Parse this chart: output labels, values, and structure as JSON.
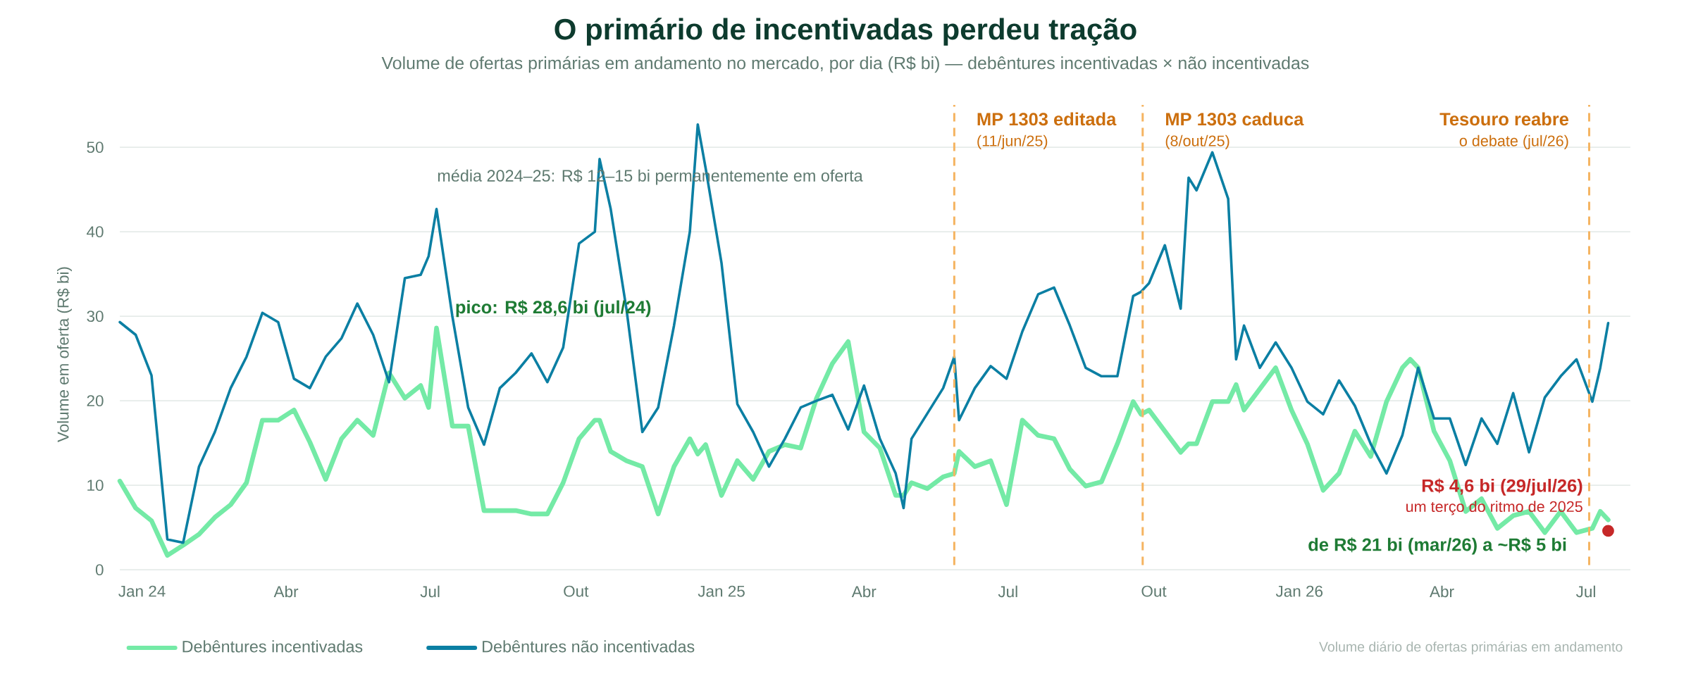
{
  "chart_data": {
    "type": "line",
    "title": "O primário de incentivadas perdeu tração",
    "subtitle": "Volume de ofertas primárias em andamento no mercado, por dia (R$ bi) — debêntures incentivadas × não incentivadas",
    "ylabel": "Volume em oferta (R$ bi)",
    "x": [
      "2024-01-01",
      "2024-01-11",
      "2024-01-21",
      "2024-01-31",
      "2024-02-10",
      "2024-02-20",
      "2024-03-01",
      "2024-03-11",
      "2024-03-21",
      "2024-03-31",
      "2024-04-10",
      "2024-04-20",
      "2024-04-30",
      "2024-05-10",
      "2024-05-20",
      "2024-05-30",
      "2024-06-09",
      "2024-06-19",
      "2024-06-29",
      "2024-07-09",
      "2024-07-14",
      "2024-07-19",
      "2024-07-29",
      "2024-08-08",
      "2024-08-18",
      "2024-08-28",
      "2024-09-07",
      "2024-09-17",
      "2024-09-27",
      "2024-10-07",
      "2024-10-17",
      "2024-10-27",
      "2024-10-30",
      "2024-11-06",
      "2024-11-16",
      "2024-11-26",
      "2024-12-06",
      "2024-12-16",
      "2024-12-26",
      "2024-12-31",
      "2025-01-05",
      "2025-01-15",
      "2025-01-25",
      "2025-02-04",
      "2025-02-14",
      "2025-02-24",
      "2025-03-06",
      "2025-03-16",
      "2025-03-26",
      "2025-04-05",
      "2025-04-15",
      "2025-04-25",
      "2025-05-05",
      "2025-05-10",
      "2025-05-15",
      "2025-05-25",
      "2025-06-04",
      "2025-06-11",
      "2025-06-14",
      "2025-06-24",
      "2025-07-04",
      "2025-07-14",
      "2025-07-24",
      "2025-08-03",
      "2025-08-13",
      "2025-08-23",
      "2025-09-02",
      "2025-09-12",
      "2025-09-22",
      "2025-10-02",
      "2025-10-07",
      "2025-10-12",
      "2025-10-22",
      "2025-11-01",
      "2025-11-06",
      "2025-11-11",
      "2025-11-21",
      "2025-12-01",
      "2025-12-06",
      "2025-12-11",
      "2025-12-21",
      "2025-12-31",
      "2026-01-10",
      "2026-01-20",
      "2026-01-30",
      "2026-02-09",
      "2026-02-19",
      "2026-03-01",
      "2026-03-11",
      "2026-03-21",
      "2026-03-26",
      "2026-03-31",
      "2026-04-10",
      "2026-04-20",
      "2026-04-30",
      "2026-05-10",
      "2026-05-20",
      "2026-05-30",
      "2026-06-09",
      "2026-06-19",
      "2026-06-29",
      "2026-07-09",
      "2026-07-19",
      "2026-07-24",
      "2026-07-29"
    ],
    "series": [
      {
        "name": "Debêntures incentivadas",
        "color": "#74eaa6",
        "values": [
          10.5,
          7.3,
          5.8,
          1.7,
          2.9,
          4.2,
          6.2,
          7.7,
          10.3,
          17.7,
          17.7,
          18.9,
          15.1,
          10.7,
          15.5,
          17.7,
          15.9,
          23.3,
          20.3,
          21.8,
          19.2,
          28.6,
          17.0,
          17.0,
          7.0,
          7.0,
          7.0,
          6.6,
          6.6,
          10.3,
          15.5,
          17.7,
          17.7,
          14.0,
          12.9,
          12.2,
          6.6,
          12.2,
          15.5,
          13.7,
          14.8,
          8.8,
          12.9,
          10.7,
          14.0,
          14.8,
          14.4,
          20.3,
          24.4,
          27.0,
          16.3,
          14.4,
          8.8,
          8.8,
          10.3,
          9.6,
          11.0,
          11.4,
          14.0,
          12.2,
          12.9,
          7.7,
          17.7,
          15.9,
          15.5,
          11.9,
          9.9,
          10.4,
          14.9,
          19.9,
          18.4,
          18.9,
          16.4,
          13.9,
          14.9,
          14.9,
          19.9,
          19.9,
          21.9,
          18.9,
          21.4,
          23.9,
          18.9,
          14.9,
          9.4,
          11.4,
          16.4,
          13.4,
          19.9,
          23.9,
          24.9,
          23.9,
          16.4,
          12.9,
          6.9,
          8.4,
          4.9,
          6.4,
          6.9,
          4.4,
          6.9,
          4.4,
          4.9,
          6.9,
          5.9
        ]
      },
      {
        "name": "Debêntures não incentivadas",
        "color": "#0b7fa3",
        "values": [
          29.3,
          27.8,
          23.0,
          3.6,
          3.2,
          12.2,
          16.3,
          21.5,
          25.2,
          30.4,
          29.3,
          22.6,
          21.5,
          25.2,
          27.4,
          31.5,
          27.8,
          22.2,
          34.5,
          34.9,
          37.1,
          42.7,
          30.0,
          19.2,
          14.8,
          21.5,
          23.3,
          25.6,
          22.2,
          26.3,
          38.6,
          40.0,
          48.6,
          42.7,
          30.8,
          16.3,
          19.2,
          28.9,
          40.0,
          52.7,
          47.5,
          36.3,
          19.6,
          16.3,
          12.2,
          15.5,
          19.2,
          20.0,
          20.7,
          16.6,
          21.8,
          15.5,
          11.4,
          7.3,
          15.5,
          18.5,
          21.5,
          25.2,
          17.7,
          21.5,
          24.1,
          22.6,
          28.2,
          32.6,
          33.4,
          28.9,
          23.9,
          22.9,
          22.9,
          32.4,
          32.9,
          33.9,
          38.4,
          30.9,
          46.4,
          44.9,
          49.4,
          43.9,
          24.9,
          28.9,
          23.9,
          26.9,
          23.9,
          19.9,
          18.4,
          22.4,
          19.4,
          14.9,
          11.4,
          15.9,
          19.9,
          23.9,
          17.9,
          17.9,
          12.4,
          17.9,
          14.9,
          20.9,
          13.9,
          20.4,
          22.9,
          24.9,
          19.9,
          23.9,
          29.2
        ]
      },
      {
        "type": "scatter",
        "marker": "circle",
        "color": "#c62828",
        "x": [
          "2026-07-29"
        ],
        "values": [
          4.6
        ]
      }
    ],
    "xlim": [
      "2024-01-01",
      "2026-08-12"
    ],
    "xticks": [
      {
        "value": "2024-01-15",
        "label": "Jan 24"
      },
      {
        "value": "2024-04-15",
        "label": "Abr"
      },
      {
        "value": "2024-07-15",
        "label": "Jul"
      },
      {
        "value": "2024-10-15",
        "label": "Out"
      },
      {
        "value": "2025-01-15",
        "label": "Jan 25"
      },
      {
        "value": "2025-04-15",
        "label": "Abr"
      },
      {
        "value": "2025-07-15",
        "label": "Jul"
      },
      {
        "value": "2025-10-15",
        "label": "Out"
      },
      {
        "value": "2026-01-15",
        "label": "Jan 26"
      },
      {
        "value": "2026-04-15",
        "label": "Abr"
      },
      {
        "value": "2026-07-15",
        "label": "Jul"
      }
    ],
    "ylim": [
      0,
      55
    ],
    "yticks": [
      0,
      10,
      20,
      30,
      40,
      50
    ],
    "grid": "y",
    "legend": "bottom",
    "ref_lines": [
      {
        "axis": "x",
        "value": "2025-06-11",
        "label": "MP 1303 editada",
        "color": "#f5b461",
        "line_style": "dashed"
      },
      {
        "axis": "x",
        "value": "2025-10-08",
        "label": "MP 1303 caduca",
        "color": "#f5b461",
        "line_style": "dashed"
      },
      {
        "axis": "x",
        "value": "2026-07-17",
        "label": "Tesouro reabre",
        "color": "#f5b461",
        "line_style": "dashed"
      }
    ],
    "annotations": [
      "média 2024–25: R$ 12–15 bi permanentemente em oferta",
      "pico: R$ 28,6 bi (jul/24)",
      {
        "text": "(11/jun/25)",
        "x": "2025-06-11",
        "y": 50.6
      },
      {
        "text": "(8/out/25)",
        "x": "2025-10-08",
        "y": 50.6
      },
      {
        "text": "o debate (jul/26)",
        "x": "2026-07-17",
        "y": 50.6
      },
      "R$ 4,6 bi (29/jul/26)",
      "um terço do ritmo de 2025",
      "de R$ 21 bi (mar/26) a ~R$ 5 bi",
      "Volume diário de ofertas primárias em andamento"
    ]
  }
}
